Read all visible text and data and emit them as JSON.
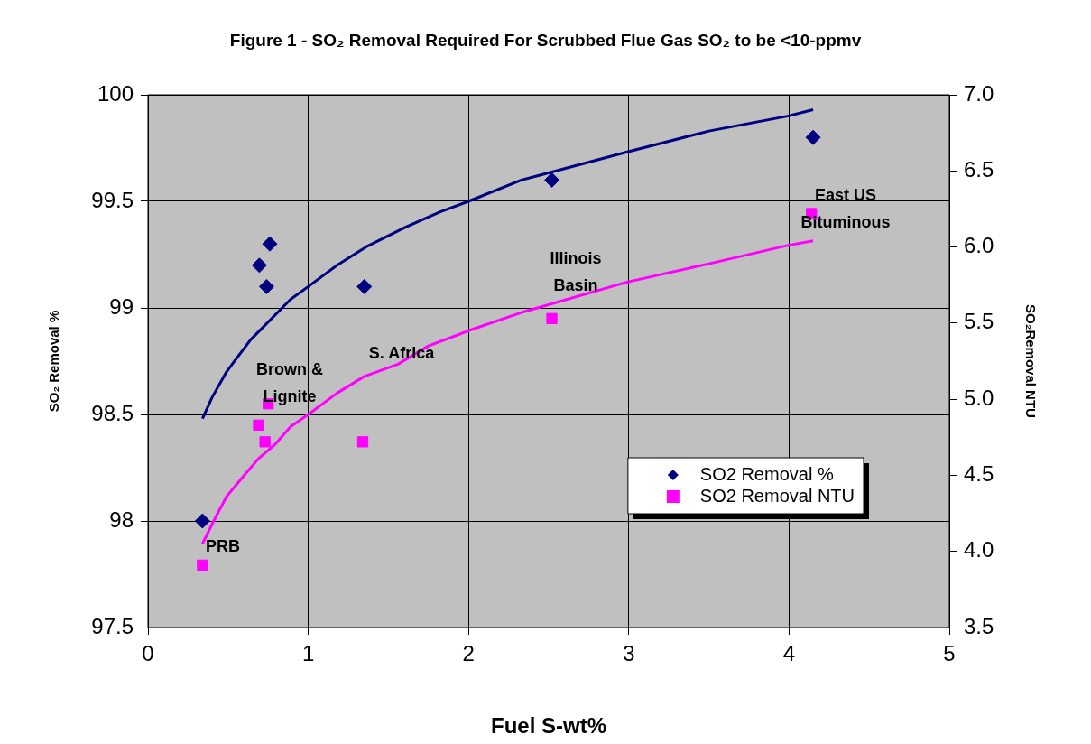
{
  "chart_data": {
    "type": "scatter",
    "title": "Figure 1 - SO₂ Removal Required For Scrubbed Flue Gas SO₂ to be <10-ppmv",
    "xlabel": "Fuel S-wt%",
    "ylabel": "SO₂ Removal %",
    "y2label": "SO₂Removal NTU",
    "xlim": [
      0,
      5
    ],
    "xticks": [
      0,
      1,
      2,
      3,
      4,
      5
    ],
    "ylim": [
      97.5,
      100
    ],
    "yticks": [
      {
        "value": 97.5,
        "label": "97.5"
      },
      {
        "value": 98,
        "label": "98"
      },
      {
        "value": 98.5,
        "label": "98.5"
      },
      {
        "value": 99,
        "label": "99"
      },
      {
        "value": 99.5,
        "label": "99.5"
      },
      {
        "value": 100,
        "label": "100"
      }
    ],
    "y2lim": [
      3.5,
      7
    ],
    "y2ticks": [
      {
        "value": 3.5,
        "label": "3.5"
      },
      {
        "value": 4,
        "label": "4.0"
      },
      {
        "value": 4.5,
        "label": "4.5"
      },
      {
        "value": 5,
        "label": "5.0"
      },
      {
        "value": 5.5,
        "label": "5.5"
      },
      {
        "value": 6,
        "label": "6.0"
      },
      {
        "value": 6.5,
        "label": "6.5"
      },
      {
        "value": 7,
        "label": "7.0"
      }
    ],
    "grid": true,
    "legend": "bottom right",
    "series": [
      {
        "name": "SO2 Removal %",
        "color": "#000080",
        "marker": "diamond",
        "x": [
          0.34,
          0.695,
          0.74,
          0.76,
          1.35,
          2.52,
          4.15
        ],
        "values": [
          98.0,
          99.2,
          99.1,
          99.3,
          99.1,
          99.6,
          99.8
        ]
      },
      {
        "name": "SO2 Removal NTU",
        "color": "#ff00ff",
        "marker": "square",
        "axis": "y2",
        "x": [
          0.34,
          0.69,
          0.73,
          0.75,
          1.34,
          2.52,
          4.14
        ],
        "values": [
          3.91,
          4.83,
          4.72,
          4.97,
          4.72,
          5.53,
          6.22
        ]
      },
      {
        "type": "line",
        "color": "#000080",
        "marker": "none",
        "x": [
          0.34,
          0.4,
          0.49,
          0.64,
          0.89,
          1.0,
          1.18,
          1.37,
          1.61,
          1.82,
          2.0,
          2.33,
          2.43,
          2.98,
          3.5,
          3.99,
          4.15
        ],
        "values": [
          98.48,
          98.58,
          98.7,
          98.85,
          99.04,
          99.1,
          99.2,
          99.29,
          99.38,
          99.45,
          99.5,
          99.6,
          99.62,
          99.73,
          99.83,
          99.9,
          99.93
        ]
      },
      {
        "type": "line",
        "color": "#ff00ff",
        "marker": "none",
        "axis": "y2",
        "x": [
          0.34,
          0.41,
          0.49,
          0.6,
          0.69,
          0.79,
          0.89,
          1.0,
          1.18,
          1.35,
          1.56,
          1.75,
          2.0,
          2.33,
          2.43,
          2.99,
          3.5,
          3.99,
          4.15
        ],
        "values": [
          4.05,
          4.2,
          4.36,
          4.5,
          4.61,
          4.7,
          4.82,
          4.9,
          5.04,
          5.15,
          5.23,
          5.35,
          5.45,
          5.57,
          5.6,
          5.77,
          5.89,
          6.01,
          6.04
        ]
      }
    ],
    "annotations": [
      "PRB",
      "Brown &\nLignite",
      "S. Africa",
      "Illinois\nBasin",
      "East US\nBituminous"
    ]
  }
}
